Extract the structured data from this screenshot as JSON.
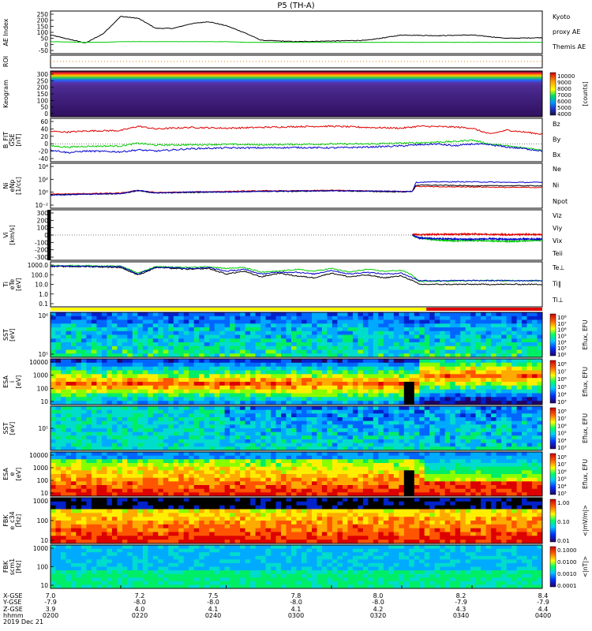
{
  "title": "P5 (TH-A)",
  "colors": {
    "kyoto": "#00cc00",
    "themis": "#000000",
    "red": "#e00000",
    "green": "#00cc00",
    "blue": "#0000cc",
    "mode_slow": "#ffff00",
    "mode_fast": "#dd0000"
  },
  "chart_data": [
    {
      "id": "ae",
      "type": "line",
      "ylabel": "AE Index",
      "ylim": [
        -60,
        260
      ],
      "yticks": [
        "250",
        "200",
        "150",
        "100",
        "50",
        "0",
        "-50"
      ],
      "legend": [
        {
          "text": "Kyoto",
          "color": "#00cc00"
        },
        {
          "text": "proxy AE",
          "color": "#00cc00"
        },
        {
          "text": "Themis AE",
          "color": "#000000"
        }
      ],
      "x_hours": [
        7.0,
        7.1,
        7.15,
        7.2,
        7.25,
        7.3,
        7.35,
        7.4,
        7.45,
        7.5,
        7.55,
        7.6,
        7.65,
        7.7,
        7.8,
        7.9,
        8.0,
        8.1,
        8.2,
        8.3,
        8.4
      ],
      "series": [
        {
          "name": "Themis AE",
          "values": [
            80,
            20,
            90,
            220,
            205,
            130,
            130,
            165,
            180,
            150,
            100,
            40,
            35,
            30,
            35,
            40,
            80,
            75,
            80,
            55,
            60
          ]
        },
        {
          "name": "Kyoto proxy AE",
          "values": [
            30,
            25,
            25,
            30,
            30,
            30,
            30,
            30,
            30,
            30,
            25,
            25,
            25,
            25,
            25,
            25,
            25,
            25,
            25,
            25,
            25
          ]
        }
      ]
    },
    {
      "id": "roi",
      "type": "heatmap",
      "ylabel": "ROI"
    },
    {
      "id": "keogram",
      "type": "heatmap",
      "ylabel": "Keogram",
      "yticks": [
        "300",
        "250",
        "200",
        "150",
        "100",
        "50",
        "0"
      ],
      "colorbar_ticks": [
        "10000",
        "9000",
        "8000",
        "7000",
        "6000",
        "5000",
        "4000"
      ],
      "colorbar_label": "[counts]"
    },
    {
      "id": "bfield",
      "type": "line",
      "ylabel": "B_FIT",
      "ylabel2": "GSE",
      "ylabel3": "[nT]",
      "ylim": [
        -45,
        65
      ],
      "yticks": [
        "60",
        "40",
        "20",
        "0",
        "-20",
        "-40"
      ],
      "legend": [
        {
          "text": "Bz",
          "color": "#e00000"
        },
        {
          "text": "By",
          "color": "#00cc00"
        },
        {
          "text": "Bx",
          "color": "#0000cc"
        }
      ],
      "x_hours": [
        7.0,
        7.05,
        7.1,
        7.2,
        7.25,
        7.3,
        7.4,
        7.5,
        7.6,
        7.7,
        7.8,
        7.9,
        8.0,
        8.05,
        8.1,
        8.15,
        8.2,
        8.25,
        8.3,
        8.35,
        8.4
      ],
      "series": [
        {
          "name": "Bz",
          "values": [
            32,
            30,
            33,
            34,
            45,
            38,
            42,
            40,
            42,
            44,
            45,
            42,
            40,
            45,
            44,
            43,
            40,
            25,
            35,
            30,
            25
          ]
        },
        {
          "name": "By",
          "values": [
            -5,
            -8,
            -6,
            -5,
            2,
            -3,
            -2,
            -1,
            -2,
            -1,
            0,
            0,
            2,
            3,
            5,
            6,
            10,
            0,
            -5,
            -10,
            -15
          ]
        },
        {
          "name": "Bx",
          "values": [
            -15,
            -22,
            -18,
            -20,
            -15,
            -18,
            -12,
            -10,
            -10,
            -9,
            -10,
            -8,
            -5,
            -2,
            0,
            -5,
            0,
            -2,
            -8,
            -12,
            -18
          ]
        }
      ]
    },
    {
      "id": "density",
      "type": "line",
      "ylabel": "Ni",
      "ylabel2": "eNp",
      "ylabel3": "[1/cc]",
      "yticks": [
        "10⁴",
        "10²",
        "10⁰",
        "10⁻²"
      ],
      "legend": [
        {
          "text": "Ne",
          "color": "#e00000"
        },
        {
          "text": "Ni",
          "color": "#000000"
        },
        {
          "text": "Npot",
          "color": "#0000cc"
        }
      ],
      "x_hours": [
        7.0,
        7.1,
        7.2,
        7.25,
        7.3,
        7.4,
        7.5,
        7.6,
        7.7,
        7.8,
        7.9,
        8.0,
        8.03,
        8.04,
        8.1,
        8.2,
        8.3,
        8.4
      ],
      "series": [
        {
          "name": "Ne",
          "values_log10": [
            -0.5,
            -0.4,
            -0.3,
            0.2,
            -0.2,
            -0.1,
            0.0,
            0.1,
            0.1,
            0.2,
            0.1,
            0.0,
            0.0,
            0.9,
            0.8,
            0.8,
            0.7,
            0.7
          ]
        },
        {
          "name": "Ni",
          "values_log10": [
            -0.6,
            -0.5,
            -0.4,
            0.1,
            -0.3,
            -0.2,
            -0.1,
            0.0,
            0.0,
            0.1,
            0.0,
            -0.1,
            0.0,
            1.1,
            1.1,
            1.0,
            1.0,
            1.0
          ]
        },
        {
          "name": "Npot",
          "values_log10": [
            -0.7,
            -0.5,
            -0.4,
            0.2,
            -0.3,
            -0.1,
            -0.1,
            0.0,
            0.1,
            0.1,
            0.1,
            0.0,
            0.0,
            1.6,
            1.7,
            1.7,
            1.6,
            1.6
          ]
        }
      ]
    },
    {
      "id": "velocity",
      "type": "line",
      "ylabel": "Vi",
      "ylabel3": "[km/s]",
      "ylim": [
        -350,
        350
      ],
      "yticks": [
        "300",
        "200",
        "100",
        "0",
        "-100",
        "-200",
        "-300"
      ],
      "legend": [
        {
          "text": "Viz",
          "color": "#e00000"
        },
        {
          "text": "Viy",
          "color": "#00cc00"
        },
        {
          "text": "Vix",
          "color": "#0000cc"
        },
        {
          "text": "Teii",
          "color": "#000000"
        }
      ],
      "x_hours": [
        8.03,
        8.05,
        8.1,
        8.15,
        8.2,
        8.25,
        8.3,
        8.35,
        8.4
      ],
      "series": [
        {
          "name": "Viz",
          "values": [
            10,
            5,
            10,
            10,
            15,
            10,
            5,
            10,
            5
          ]
        },
        {
          "name": "Viy",
          "values": [
            -10,
            -40,
            -70,
            -80,
            -75,
            -80,
            -90,
            -80,
            -70
          ]
        },
        {
          "name": "Vix",
          "values": [
            0,
            -40,
            -50,
            -55,
            -60,
            -50,
            -60,
            -55,
            -55
          ]
        }
      ]
    },
    {
      "id": "temperature",
      "type": "line",
      "ylabel": "Ti",
      "ylabel2": "eTe",
      "ylabel3": "[eV]",
      "yticks": [
        "1000.0",
        "100.0",
        "10.0",
        "1.0",
        "0.1"
      ],
      "legend": [
        {
          "text": "Te⊥",
          "color": "#e00000"
        },
        {
          "text": "Ti‖",
          "color": "#00cc00"
        },
        {
          "text": "Ti⊥",
          "color": "#0000cc"
        }
      ],
      "x_hours": [
        7.0,
        7.1,
        7.2,
        7.25,
        7.3,
        7.4,
        7.45,
        7.5,
        7.55,
        7.6,
        7.65,
        7.7,
        7.75,
        7.8,
        7.85,
        7.9,
        7.95,
        8.0,
        8.03,
        8.05,
        8.2,
        8.4
      ],
      "series": [
        {
          "name": "Ti‖",
          "values_log10": [
            3.2,
            3.2,
            3.15,
            2.4,
            3.1,
            3.0,
            3.1,
            2.9,
            3.0,
            2.5,
            2.6,
            2.8,
            2.6,
            2.9,
            2.5,
            2.8,
            2.6,
            2.7,
            2.2,
            1.5,
            1.6,
            1.6
          ]
        },
        {
          "name": "Te",
          "values_log10": [
            3.1,
            3.1,
            3.0,
            2.2,
            3.0,
            2.8,
            2.9,
            2.3,
            2.6,
            2.0,
            2.4,
            2.1,
            1.9,
            2.4,
            2.0,
            2.2,
            1.9,
            2.1,
            1.6,
            1.2,
            1.2,
            1.2
          ]
        },
        {
          "name": "Ti⊥",
          "values_log10": [
            3.15,
            3.15,
            3.1,
            2.3,
            3.05,
            2.9,
            3.0,
            2.6,
            2.8,
            2.3,
            2.5,
            2.5,
            2.3,
            2.7,
            2.3,
            2.5,
            2.3,
            2.4,
            1.9,
            1.6,
            1.6,
            1.6
          ]
        }
      ]
    },
    {
      "id": "sst_ion",
      "type": "heatmap",
      "ylabel": "SST",
      "ylabel3": "[eV]",
      "yticks": [
        "10⁶",
        "10⁵"
      ],
      "colorbar_ticks": [
        "10⁸",
        "10⁷",
        "10⁶",
        "10⁵",
        "10⁴",
        "10³",
        "10²"
      ],
      "colorbar_label": "Eflux, EFU"
    },
    {
      "id": "esa_ion",
      "type": "heatmap",
      "ylabel": "ESA",
      "ylabel2": "i",
      "ylabel3": "[eV]",
      "yticks": [
        "10000",
        "1000",
        "100",
        "10"
      ],
      "colorbar_ticks": [
        "10⁸",
        "10⁷",
        "10⁶",
        "10⁵",
        "10⁴",
        "10³"
      ],
      "colorbar_label": "Eflux, EFU"
    },
    {
      "id": "sst_elec",
      "type": "heatmap",
      "ylabel": "SST",
      "ylabel3": "[eV]",
      "yticks": [
        "10⁵"
      ],
      "colorbar_ticks": [
        "10⁸",
        "10⁷",
        "10⁶",
        "10⁵",
        "10⁴",
        "10³"
      ],
      "colorbar_label": "Eflux, EFU"
    },
    {
      "id": "esa_elec",
      "type": "heatmap",
      "ylabel": "ESA",
      "ylabel2": "e",
      "ylabel3": "[eV]",
      "yticks": [
        "10000",
        "1000",
        "100",
        "10"
      ],
      "colorbar_ticks": [
        "10⁸",
        "10⁷",
        "10⁶",
        "10⁵",
        "10⁴",
        "10³"
      ],
      "colorbar_label": "Eflux, EFU"
    },
    {
      "id": "fbk_e",
      "type": "heatmap",
      "ylabel": "FBK",
      "ylabel2": "e_c34",
      "ylabel3": "[Hz]",
      "yticks": [
        "1000",
        "100",
        "10"
      ],
      "colorbar_ticks": [
        "1.00",
        "0.10",
        "0.01"
      ],
      "colorbar_label": "<|mV/m|>"
    },
    {
      "id": "fbk_b",
      "type": "heatmap",
      "ylabel": "FBK",
      "ylabel2": "scm1",
      "ylabel3": "[Hz]",
      "yticks": [
        "1000",
        "100",
        "10"
      ],
      "colorbar_ticks": [
        "0.1000",
        "0.0100",
        "0.0010",
        "0.0001"
      ],
      "colorbar_label": "<|nT|>"
    }
  ],
  "x_axis": {
    "row_labels": [
      "X-GSE",
      "Y-GSE",
      "Z-GSE",
      "hhmm",
      "2019 Dec 21"
    ],
    "ticks": [
      {
        "x": "7.0",
        "y": "-7.9",
        "z": "3.9",
        "t": "0200"
      },
      {
        "x": "7.2",
        "y": "-8.0",
        "z": "4.0",
        "t": "0220"
      },
      {
        "x": "7.5",
        "y": "-8.0",
        "z": "4.1",
        "t": "0240"
      },
      {
        "x": "7.8",
        "y": "-8.0",
        "z": "4.1",
        "t": "0300"
      },
      {
        "x": "8.0",
        "y": "-8.0",
        "z": "4.2",
        "t": "0320"
      },
      {
        "x": "8.2",
        "y": "-7.9",
        "z": "4.3",
        "t": "0340"
      },
      {
        "x": "8.4",
        "y": "-7.9",
        "z": "4.4",
        "t": "0400"
      }
    ]
  }
}
